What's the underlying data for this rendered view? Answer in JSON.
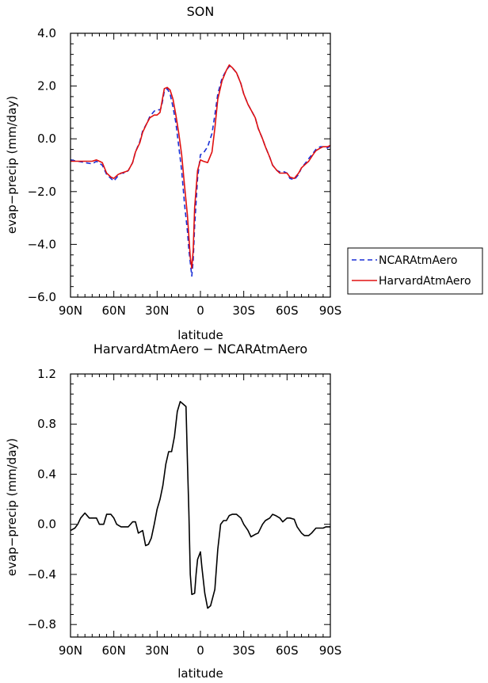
{
  "chart_data": [
    {
      "type": "line",
      "title": "SON",
      "xlabel": "latitude",
      "ylabel": "evap−precip (mm/day)",
      "xlim": [
        90,
        -90
      ],
      "ylim": [
        -6,
        4
      ],
      "x_ticks": [
        90,
        60,
        30,
        0,
        -30,
        -60,
        -90
      ],
      "x_tick_labels": [
        "90N",
        "60N",
        "30N",
        "0",
        "30S",
        "60S",
        "90S"
      ],
      "y_ticks": [
        -6,
        -4,
        -2,
        0,
        2,
        4
      ],
      "y_tick_labels": [
        "−6.0",
        "−4.0",
        "−2.0",
        "0.0",
        "2.0",
        "4.0"
      ],
      "legend_position": "right",
      "series": [
        {
          "name": "NCARAtmAero",
          "color": "#1a2fd6",
          "dash": "dashed",
          "x": [
            90,
            85,
            80,
            75,
            72,
            68,
            65,
            62,
            60,
            57,
            55,
            52,
            50,
            47,
            45,
            42,
            40,
            37,
            35,
            32,
            30,
            28,
            27,
            25,
            23,
            21,
            19,
            17,
            15,
            13,
            11,
            9,
            8,
            7,
            6,
            5,
            4,
            2,
            0,
            -2,
            -5,
            -8,
            -10,
            -12,
            -15,
            -18,
            -20,
            -22,
            -25,
            -28,
            -30,
            -33,
            -35,
            -38,
            -40,
            -43,
            -45,
            -48,
            -50,
            -53,
            -55,
            -58,
            -60,
            -62,
            -65,
            -68,
            -70,
            -73,
            -75,
            -78,
            -80,
            -83,
            -85,
            -88,
            -90
          ],
          "y": [
            -0.8,
            -0.85,
            -0.9,
            -0.95,
            -0.85,
            -1.0,
            -1.35,
            -1.5,
            -1.6,
            -1.4,
            -1.3,
            -1.3,
            -1.2,
            -0.9,
            -0.5,
            -0.1,
            0.3,
            0.6,
            0.85,
            1.05,
            1.1,
            1.1,
            1.2,
            1.8,
            1.9,
            1.7,
            1.2,
            0.6,
            -0.3,
            -1.2,
            -2.5,
            -3.5,
            -4.2,
            -4.7,
            -5.2,
            -4.6,
            -3.3,
            -1.5,
            -0.6,
            -0.55,
            -0.3,
            0.2,
            0.9,
            1.7,
            2.3,
            2.6,
            2.75,
            2.7,
            2.5,
            2.1,
            1.7,
            1.3,
            1.1,
            0.8,
            0.4,
            0.0,
            -0.3,
            -0.7,
            -1.0,
            -1.2,
            -1.25,
            -1.25,
            -1.3,
            -1.5,
            -1.55,
            -1.35,
            -1.1,
            -0.9,
            -0.75,
            -0.55,
            -0.4,
            -0.3,
            -0.3,
            -0.35,
            -0.25
          ]
        },
        {
          "name": "HarvardAtmAero",
          "color": "#e01010",
          "dash": "solid",
          "x": [
            90,
            85,
            80,
            75,
            72,
            68,
            65,
            62,
            60,
            57,
            55,
            52,
            50,
            47,
            45,
            42,
            40,
            37,
            35,
            32,
            30,
            28,
            27,
            25,
            23,
            21,
            19,
            17,
            15,
            13,
            11,
            9,
            8,
            7,
            6,
            5,
            4,
            2,
            0,
            -2,
            -5,
            -8,
            -10,
            -12,
            -15,
            -18,
            -20,
            -22,
            -25,
            -28,
            -30,
            -33,
            -35,
            -38,
            -40,
            -43,
            -45,
            -48,
            -50,
            -53,
            -55,
            -58,
            -60,
            -62,
            -65,
            -68,
            -70,
            -73,
            -75,
            -78,
            -80,
            -83,
            -85,
            -88,
            -90
          ],
          "y": [
            -0.85,
            -0.85,
            -0.85,
            -0.85,
            -0.8,
            -0.9,
            -1.3,
            -1.45,
            -1.5,
            -1.35,
            -1.3,
            -1.25,
            -1.2,
            -0.9,
            -0.5,
            -0.15,
            0.25,
            0.6,
            0.8,
            0.9,
            0.9,
            1.0,
            1.3,
            1.9,
            1.95,
            1.85,
            1.5,
            0.9,
            0.2,
            -0.6,
            -1.8,
            -2.9,
            -3.7,
            -4.5,
            -4.9,
            -4.2,
            -2.6,
            -1.2,
            -0.8,
            -0.85,
            -0.9,
            -0.5,
            0.4,
            1.5,
            2.2,
            2.6,
            2.8,
            2.7,
            2.5,
            2.1,
            1.7,
            1.3,
            1.1,
            0.8,
            0.4,
            0.0,
            -0.3,
            -0.7,
            -1.0,
            -1.2,
            -1.3,
            -1.3,
            -1.3,
            -1.45,
            -1.5,
            -1.3,
            -1.1,
            -0.95,
            -0.85,
            -0.6,
            -0.45,
            -0.35,
            -0.3,
            -0.3,
            -0.25
          ]
        }
      ]
    },
    {
      "type": "line",
      "title": "HarvardAtmAero − NCARAtmAero",
      "xlabel": "latitude",
      "ylabel": "evap−precip (mm/day)",
      "xlim": [
        90,
        -90
      ],
      "ylim": [
        -0.9,
        1.2
      ],
      "x_ticks": [
        90,
        60,
        30,
        0,
        -30,
        -60,
        -90
      ],
      "x_tick_labels": [
        "90N",
        "60N",
        "30N",
        "0",
        "30S",
        "60S",
        "90S"
      ],
      "y_ticks": [
        -0.8,
        -0.4,
        0.0,
        0.4,
        0.8,
        1.2
      ],
      "y_tick_labels": [
        "−0.8",
        "−0.4",
        "0.0",
        "0.4",
        "0.8",
        "1.2"
      ],
      "series": [
        {
          "color": "#000000",
          "dash": "solid",
          "x": [
            90,
            87,
            85,
            83,
            80,
            77,
            75,
            72,
            70,
            67,
            65,
            62,
            60,
            58,
            55,
            52,
            50,
            47,
            45,
            43,
            40,
            38,
            36,
            34,
            32,
            30,
            28,
            26,
            24,
            22,
            20,
            18,
            16,
            14,
            12,
            10,
            9,
            8,
            7,
            6,
            4,
            3,
            2,
            0,
            -1,
            -3,
            -5,
            -7,
            -10,
            -12,
            -14,
            -16,
            -18,
            -20,
            -22,
            -25,
            -28,
            -30,
            -33,
            -35,
            -38,
            -40,
            -43,
            -45,
            -48,
            -50,
            -52,
            -55,
            -57,
            -60,
            -62,
            -65,
            -67,
            -70,
            -72,
            -75,
            -77,
            -80,
            -82,
            -85,
            -87,
            -90
          ],
          "y": [
            -0.05,
            -0.03,
            0.0,
            0.05,
            0.09,
            0.05,
            0.05,
            0.05,
            0.0,
            0.0,
            0.08,
            0.08,
            0.05,
            0.0,
            -0.02,
            -0.02,
            -0.02,
            0.02,
            0.02,
            -0.07,
            -0.05,
            -0.17,
            -0.16,
            -0.11,
            0.0,
            0.12,
            0.2,
            0.31,
            0.48,
            0.58,
            0.58,
            0.7,
            0.9,
            0.98,
            0.96,
            0.94,
            0.5,
            0.1,
            -0.4,
            -0.56,
            -0.55,
            -0.4,
            -0.28,
            -0.22,
            -0.34,
            -0.55,
            -0.67,
            -0.65,
            -0.52,
            -0.2,
            0.0,
            0.03,
            0.03,
            0.07,
            0.08,
            0.08,
            0.05,
            0.0,
            -0.05,
            -0.1,
            -0.08,
            -0.07,
            0.0,
            0.03,
            0.05,
            0.08,
            0.07,
            0.05,
            0.02,
            0.05,
            0.05,
            0.04,
            -0.02,
            -0.07,
            -0.09,
            -0.09,
            -0.07,
            -0.03,
            -0.03,
            -0.03,
            -0.02,
            -0.02
          ]
        }
      ]
    }
  ]
}
